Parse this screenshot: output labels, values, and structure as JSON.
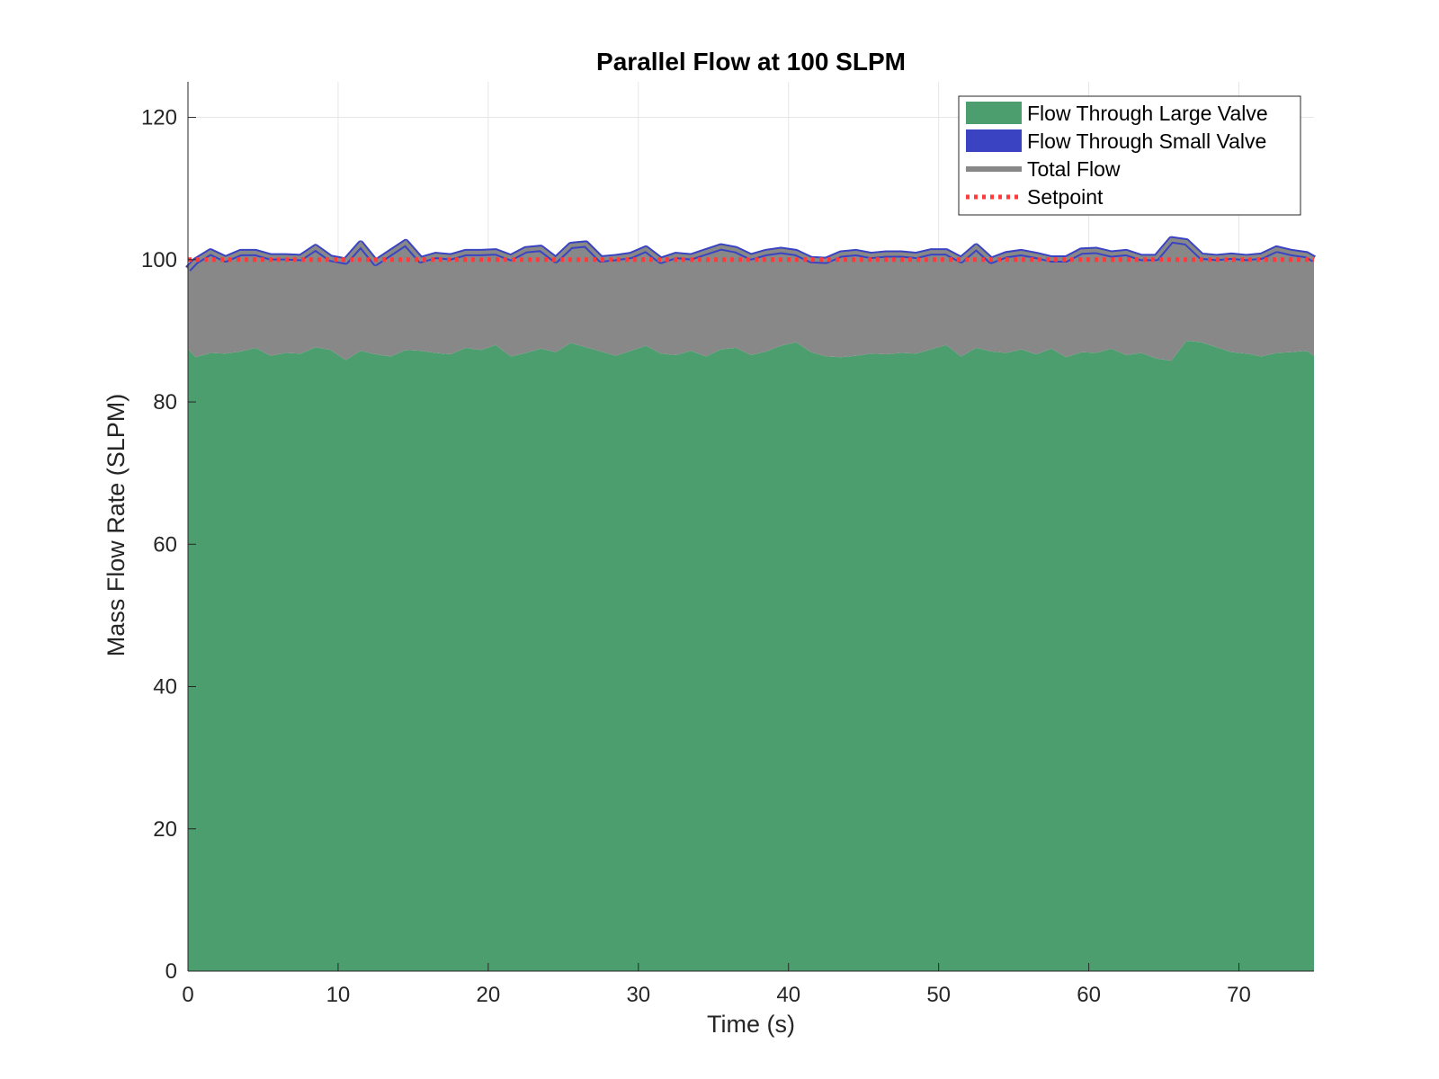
{
  "chart_data": {
    "type": "area",
    "title": "Parallel Flow at 100 SLPM",
    "xlabel": "Time (s)",
    "ylabel": "Mass Flow Rate (SLPM)",
    "xlim": [
      0,
      75
    ],
    "ylim": [
      0,
      125
    ],
    "xticks": [
      "0",
      "10",
      "20",
      "30",
      "40",
      "50",
      "60",
      "70"
    ],
    "yticks": [
      "0",
      "20",
      "40",
      "60",
      "80",
      "100",
      "120"
    ],
    "grid": true,
    "legend_position": "top-right",
    "x": [
      0,
      0.5,
      1.5,
      2.5,
      3.5,
      4.5,
      5.5,
      6.5,
      7.5,
      8.5,
      9.5,
      10.5,
      11.5,
      12.5,
      13.5,
      14.5,
      15.5,
      16.5,
      17.5,
      18.5,
      19.5,
      20.5,
      21.5,
      22.5,
      23.5,
      24.5,
      25.5,
      26.5,
      27.5,
      28.5,
      29.5,
      30.5,
      31.5,
      32.5,
      33.5,
      34.5,
      35.5,
      36.5,
      37.5,
      38.5,
      39.5,
      40.5,
      41.5,
      42.5,
      43.5,
      44.5,
      45.5,
      46.5,
      47.5,
      48.5,
      49.5,
      50.5,
      51.5,
      52.5,
      53.5,
      54.5,
      55.5,
      56.5,
      57.5,
      58.5,
      59.5,
      60.5,
      61.5,
      62.5,
      63.5,
      64.5,
      65.5,
      66.5,
      67.5,
      68.5,
      69.5,
      70.5,
      71.5,
      72.5,
      73.5,
      74.5,
      75
    ],
    "series": [
      {
        "name": "Flow Through Large Valve",
        "color": "#4c9e6f",
        "values": [
          87.5,
          86.3,
          86.9,
          86.8,
          87.1,
          87.6,
          86.5,
          86.9,
          86.8,
          87.7,
          87.3,
          85.9,
          87.2,
          86.7,
          86.4,
          87.3,
          87.2,
          86.9,
          86.7,
          87.6,
          87.3,
          88.0,
          86.4,
          86.9,
          87.5,
          87.0,
          88.3,
          87.7,
          87.1,
          86.5,
          87.2,
          87.9,
          86.8,
          86.6,
          87.2,
          86.4,
          87.4,
          87.6,
          86.6,
          87.1,
          87.9,
          88.4,
          87.0,
          86.4,
          86.3,
          86.5,
          86.8,
          86.7,
          86.9,
          86.8,
          87.4,
          88.0,
          86.4,
          87.6,
          87.1,
          86.9,
          87.4,
          86.7,
          87.5,
          86.3,
          87.0,
          86.9,
          87.5,
          86.6,
          86.9,
          86.1,
          85.8,
          88.6,
          88.4,
          87.7,
          87.0,
          86.8,
          86.4,
          86.9,
          87.0,
          87.2,
          86.5
        ]
      },
      {
        "name": "Flow Through Small Valve",
        "color": "#3a44c2",
        "values": [
          11.2,
          13.5,
          14.2,
          13.3,
          13.9,
          13.4,
          13.9,
          13.5,
          13.5,
          14.0,
          12.9,
          13.9,
          15.0,
          12.9,
          14.6,
          15.1,
          12.8,
          13.7,
          13.7,
          13.4,
          13.7,
          13.1,
          13.9,
          14.5,
          14.1,
          13.0,
          13.7,
          14.5,
          13.0,
          13.8,
          13.4,
          13.6,
          13.1,
          14.0,
          13.2,
          14.7,
          14.4,
          13.8,
          13.8,
          13.9,
          13.4,
          12.6,
          13.0,
          13.5,
          14.5,
          14.5,
          13.8,
          14.1,
          13.9,
          13.8,
          13.7,
          13.1,
          13.6,
          14.2,
          12.8,
          13.8,
          13.6,
          13.9,
          12.6,
          13.8,
          14.2,
          14.4,
          13.3,
          14.4,
          13.4,
          14.2,
          17.0,
          13.9,
          12.1,
          12.6,
          13.5,
          13.5,
          14.1,
          14.6,
          14.0,
          13.5,
          13.6
        ]
      },
      {
        "name": "Total Flow",
        "color": "#888888",
        "values": [
          98.7,
          99.8,
          101.1,
          100.1,
          101.0,
          101.0,
          100.4,
          100.4,
          100.3,
          101.7,
          100.2,
          99.8,
          102.2,
          99.6,
          101.0,
          102.4,
          100.0,
          100.6,
          100.4,
          101.0,
          101.0,
          101.1,
          100.3,
          101.4,
          101.6,
          100.0,
          102.0,
          102.2,
          100.1,
          100.3,
          100.6,
          101.5,
          99.9,
          100.6,
          100.4,
          101.1,
          101.8,
          101.4,
          100.4,
          101.0,
          101.3,
          101.0,
          100.0,
          99.9,
          100.8,
          101.0,
          100.6,
          100.8,
          100.8,
          100.6,
          101.1,
          101.1,
          100.0,
          101.8,
          99.9,
          100.7,
          101.0,
          100.6,
          100.1,
          100.1,
          101.2,
          101.3,
          100.8,
          101.0,
          100.3,
          100.3,
          102.8,
          102.5,
          100.5,
          100.3,
          100.5,
          100.3,
          100.5,
          101.5,
          101.0,
          100.7,
          100.1
        ]
      },
      {
        "name": "Setpoint",
        "color": "#ff3b3b",
        "values": [
          100,
          100,
          100,
          100,
          100,
          100,
          100,
          100,
          100,
          100,
          100,
          100,
          100,
          100,
          100,
          100,
          100,
          100,
          100,
          100,
          100,
          100,
          100,
          100,
          100,
          100,
          100,
          100,
          100,
          100,
          100,
          100,
          100,
          100,
          100,
          100,
          100,
          100,
          100,
          100,
          100,
          100,
          100,
          100,
          100,
          100,
          100,
          100,
          100,
          100,
          100,
          100,
          100,
          100,
          100,
          100,
          100,
          100,
          100,
          100,
          100,
          100,
          100,
          100,
          100,
          100,
          100,
          100,
          100,
          100,
          100,
          100,
          100,
          100,
          100,
          100,
          100
        ]
      }
    ]
  }
}
